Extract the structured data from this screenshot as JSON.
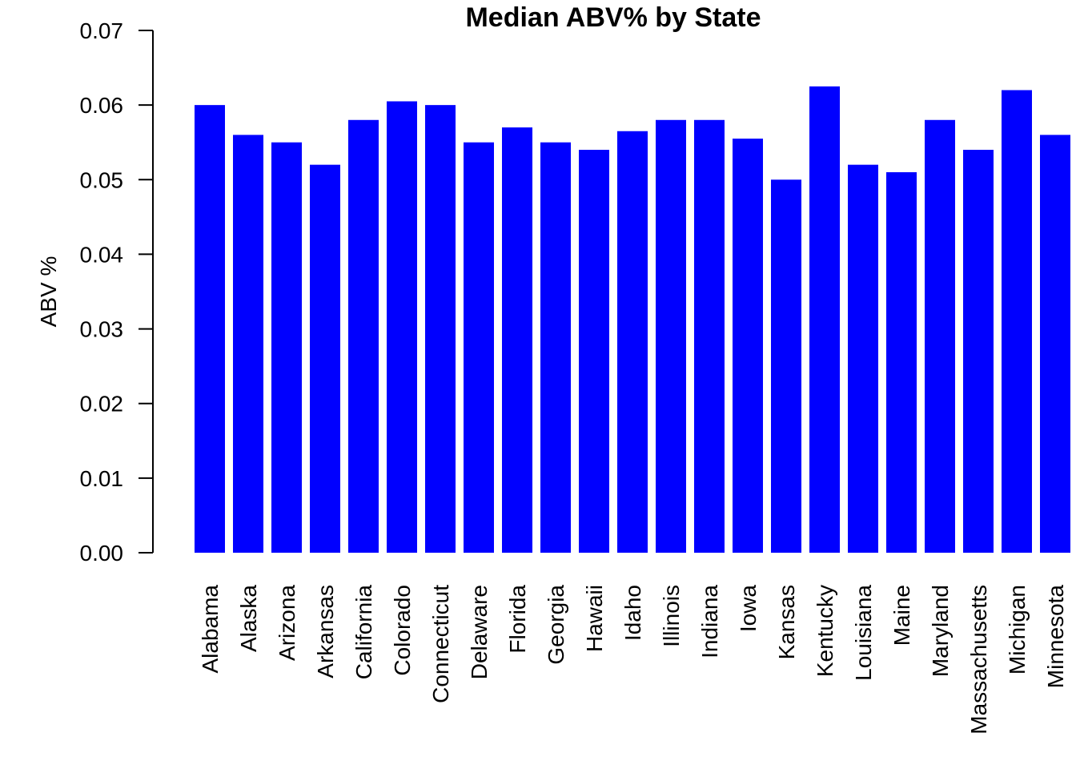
{
  "chart_data": {
    "type": "bar",
    "title": "Median ABV% by State",
    "xlabel": "",
    "ylabel": "ABV %",
    "ylim": [
      0,
      0.07
    ],
    "yticks": [
      "0.00",
      "0.01",
      "0.02",
      "0.03",
      "0.04",
      "0.05",
      "0.06",
      "0.07"
    ],
    "bar_color": "#0000FF",
    "grid": false,
    "legend": "none",
    "categories": [
      "Alabama",
      "Alaska",
      "Arizona",
      "Arkansas",
      "California",
      "Colorado",
      "Connecticut",
      "Delaware",
      "Florida",
      "Georgia",
      "Hawaii",
      "Idaho",
      "Illinois",
      "Indiana",
      "Iowa",
      "Kansas",
      "Kentucky",
      "Louisiana",
      "Maine",
      "Maryland",
      "Massachusetts",
      "Michigan",
      "Minnesota"
    ],
    "values": [
      0.06,
      0.056,
      0.055,
      0.052,
      0.058,
      0.0605,
      0.06,
      0.055,
      0.057,
      0.055,
      0.054,
      0.0565,
      0.058,
      0.058,
      0.0555,
      0.05,
      0.0625,
      0.052,
      0.051,
      0.058,
      0.054,
      0.062,
      0.056
    ]
  }
}
